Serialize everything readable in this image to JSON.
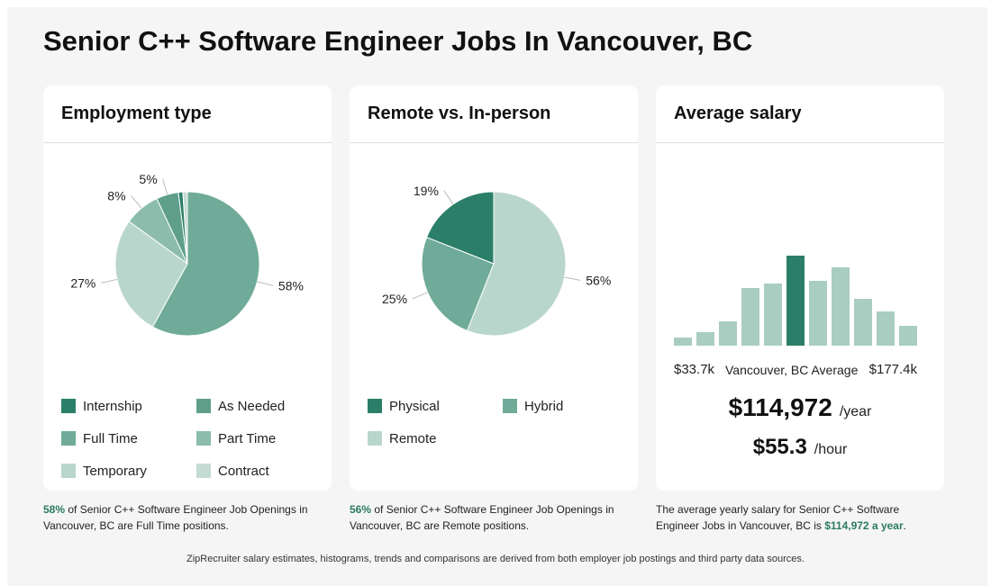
{
  "page": {
    "title": "Senior C++ Software Engineer Jobs In Vancouver, BC",
    "footer": "ZipRecruiter salary estimates, histograms, trends and comparisons are derived from both employer job postings and third party data sources."
  },
  "employment": {
    "heading": "Employment type",
    "legend": [
      "Internship",
      "As Needed",
      "Full Time",
      "Part Time",
      "Temporary",
      "Contract"
    ],
    "caption_pct": "58%",
    "caption_rest": " of Senior C++ Software Engineer Job Openings in Vancouver, BC are Full Time positions."
  },
  "remote": {
    "heading": "Remote vs. In-person",
    "legend": [
      "Physical",
      "Hybrid",
      "Remote"
    ],
    "caption_pct": "56%",
    "caption_rest": " of Senior C++ Software Engineer Job Openings in Vancouver, BC are Remote positions."
  },
  "salary": {
    "heading": "Average salary",
    "min_label": "$33.7k",
    "avg_label": "Vancouver, BC Average",
    "max_label": "$177.4k",
    "yearly_value": "$114,972",
    "yearly_unit": "/year",
    "hourly_value": "$55.3",
    "hourly_unit": "/hour",
    "caption_before": "The average yearly salary for Senior C++ Software Engineer Jobs in Vancouver, BC is ",
    "caption_value": "$114,972 a year",
    "caption_after": "."
  },
  "colors": {
    "dark_green": "#2b7f68",
    "medium_green": "#5f9f8a",
    "mid_green": "#6fab98",
    "light_green": "#8bbcac",
    "pale_green": "#b9d6cc",
    "paler_green": "#c4dcd3",
    "bar_light": "#a9cdc1",
    "bar_highlight": "#2b7f68"
  },
  "chart_data": [
    {
      "type": "pie",
      "title": "Employment type",
      "slices": [
        {
          "label": "Full Time",
          "value": 58,
          "value_label": "58%",
          "color": "#6fab98"
        },
        {
          "label": "Temporary",
          "value": 27,
          "value_label": "27%",
          "color": "#b9d6cc"
        },
        {
          "label": "Part Time",
          "value": 8,
          "value_label": "8%",
          "color": "#8bbcac"
        },
        {
          "label": "As Needed",
          "value": 5,
          "value_label": "5%",
          "color": "#5f9f8a"
        },
        {
          "label": "Internship",
          "value": 1,
          "value_label": "",
          "color": "#2b7f68"
        },
        {
          "label": "Contract",
          "value": 1,
          "value_label": "",
          "color": "#c4dcd3"
        }
      ]
    },
    {
      "type": "pie",
      "title": "Remote vs. In-person",
      "slices": [
        {
          "label": "Remote",
          "value": 56,
          "value_label": "56%",
          "color": "#b9d6cc"
        },
        {
          "label": "Hybrid",
          "value": 25,
          "value_label": "25%",
          "color": "#6fab98"
        },
        {
          "label": "Physical",
          "value": 19,
          "value_label": "19%",
          "color": "#2b7f68"
        }
      ]
    },
    {
      "type": "bar",
      "title": "Average salary",
      "x_range_labels": [
        "$33.7k",
        "$177.4k"
      ],
      "values": [
        0.09,
        0.15,
        0.27,
        0.64,
        0.69,
        1.0,
        0.72,
        0.87,
        0.52,
        0.38,
        0.22
      ],
      "highlight_index": 5,
      "highlight_label": "Vancouver, BC Average"
    }
  ]
}
